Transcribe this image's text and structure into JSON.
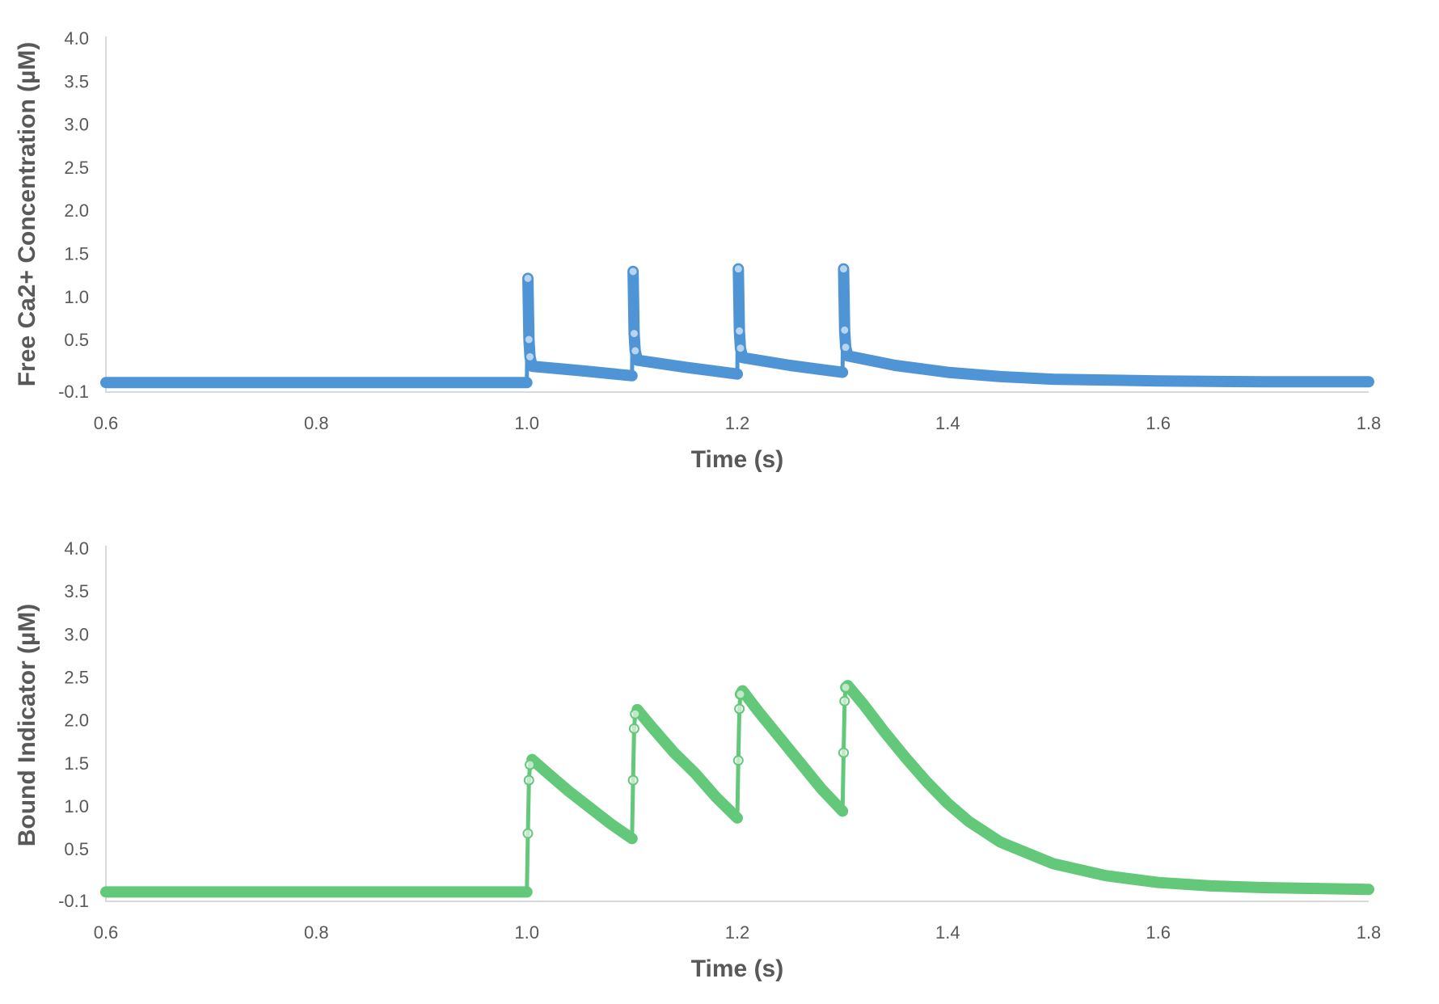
{
  "colors": {
    "free_ca": "#4f95d6",
    "bound_indicator": "#63c879",
    "axis": "#d9d9d9",
    "text": "#595959"
  },
  "chart_data": [
    {
      "type": "line",
      "title": "",
      "xlabel": "Time (s)",
      "ylabel": "Free Ca2+ Concentration (µM)",
      "xlim": [
        0.6,
        1.8
      ],
      "ylim": [
        -0.1,
        4.0
      ],
      "x_ticks": [
        "0.6",
        "0.8",
        "1.0",
        "1.2",
        "1.4",
        "1.6",
        "1.8"
      ],
      "y_ticks": [
        "-0.1",
        "0.5",
        "1.0",
        "1.5",
        "2.0",
        "2.5",
        "3.0",
        "3.5",
        "4.0"
      ],
      "grid": false,
      "legend": null,
      "series": [
        {
          "name": "Free Ca2+",
          "color": "#4f95d6",
          "points": [
            [
              0.6,
              0.0
            ],
            [
              1.0,
              0.0
            ],
            [
              1.001,
              1.21
            ],
            [
              1.002,
              0.5
            ],
            [
              1.003,
              0.3
            ],
            [
              1.005,
              0.19
            ],
            [
              1.05,
              0.14
            ],
            [
              1.1,
              0.08
            ],
            [
              1.101,
              1.29
            ],
            [
              1.102,
              0.57
            ],
            [
              1.103,
              0.37
            ],
            [
              1.105,
              0.26
            ],
            [
              1.15,
              0.18
            ],
            [
              1.2,
              0.1
            ],
            [
              1.201,
              1.32
            ],
            [
              1.202,
              0.6
            ],
            [
              1.203,
              0.4
            ],
            [
              1.205,
              0.29
            ],
            [
              1.25,
              0.2
            ],
            [
              1.3,
              0.12
            ],
            [
              1.301,
              1.32
            ],
            [
              1.302,
              0.61
            ],
            [
              1.303,
              0.41
            ],
            [
              1.305,
              0.31
            ],
            [
              1.35,
              0.2
            ],
            [
              1.4,
              0.12
            ],
            [
              1.45,
              0.07
            ],
            [
              1.5,
              0.04
            ],
            [
              1.6,
              0.02
            ],
            [
              1.7,
              0.01
            ],
            [
              1.8,
              0.01
            ]
          ],
          "markers": [
            [
              1.001,
              1.21
            ],
            [
              1.002,
              0.5
            ],
            [
              1.003,
              0.3
            ],
            [
              1.101,
              1.29
            ],
            [
              1.102,
              0.57
            ],
            [
              1.103,
              0.37
            ],
            [
              1.201,
              1.32
            ],
            [
              1.202,
              0.6
            ],
            [
              1.203,
              0.4
            ],
            [
              1.301,
              1.32
            ],
            [
              1.302,
              0.61
            ],
            [
              1.303,
              0.41
            ]
          ]
        }
      ]
    },
    {
      "type": "line",
      "title": "",
      "xlabel": "Time (s)",
      "ylabel": "Bound Indicator (µM)",
      "xlim": [
        0.6,
        1.8
      ],
      "ylim": [
        -0.1,
        4.0
      ],
      "x_ticks": [
        "0.6",
        "0.8",
        "1.0",
        "1.2",
        "1.4",
        "1.6",
        "1.8"
      ],
      "y_ticks": [
        "-0.1",
        "0.5",
        "1.0",
        "1.5",
        "2.0",
        "2.5",
        "3.0",
        "3.5",
        "4.0"
      ],
      "grid": false,
      "legend": null,
      "series": [
        {
          "name": "Bound Indicator",
          "color": "#63c879",
          "points": [
            [
              0.6,
              0.0
            ],
            [
              1.0,
              0.0
            ],
            [
              1.001,
              0.68
            ],
            [
              1.002,
              1.3
            ],
            [
              1.003,
              1.48
            ],
            [
              1.005,
              1.54
            ],
            [
              1.02,
              1.38
            ],
            [
              1.04,
              1.17
            ],
            [
              1.06,
              0.98
            ],
            [
              1.08,
              0.79
            ],
            [
              1.1,
              0.62
            ],
            [
              1.101,
              1.3
            ],
            [
              1.102,
              1.9
            ],
            [
              1.103,
              2.07
            ],
            [
              1.105,
              2.12
            ],
            [
              1.12,
              1.9
            ],
            [
              1.14,
              1.62
            ],
            [
              1.16,
              1.38
            ],
            [
              1.18,
              1.1
            ],
            [
              1.2,
              0.86
            ],
            [
              1.201,
              1.53
            ],
            [
              1.202,
              2.13
            ],
            [
              1.203,
              2.3
            ],
            [
              1.205,
              2.34
            ],
            [
              1.22,
              2.1
            ],
            [
              1.24,
              1.8
            ],
            [
              1.26,
              1.5
            ],
            [
              1.28,
              1.2
            ],
            [
              1.3,
              0.94
            ],
            [
              1.301,
              1.62
            ],
            [
              1.302,
              2.22
            ],
            [
              1.303,
              2.38
            ],
            [
              1.305,
              2.4
            ],
            [
              1.32,
              2.18
            ],
            [
              1.34,
              1.86
            ],
            [
              1.36,
              1.56
            ],
            [
              1.38,
              1.28
            ],
            [
              1.4,
              1.03
            ],
            [
              1.42,
              0.82
            ],
            [
              1.45,
              0.58
            ],
            [
              1.5,
              0.33
            ],
            [
              1.55,
              0.19
            ],
            [
              1.6,
              0.11
            ],
            [
              1.65,
              0.07
            ],
            [
              1.7,
              0.05
            ],
            [
              1.75,
              0.04
            ],
            [
              1.8,
              0.03
            ]
          ],
          "markers": [
            [
              1.001,
              0.68
            ],
            [
              1.002,
              1.3
            ],
            [
              1.003,
              1.48
            ],
            [
              1.101,
              1.3
            ],
            [
              1.102,
              1.9
            ],
            [
              1.103,
              2.07
            ],
            [
              1.201,
              1.53
            ],
            [
              1.202,
              2.13
            ],
            [
              1.203,
              2.3
            ],
            [
              1.301,
              1.62
            ],
            [
              1.302,
              2.22
            ],
            [
              1.303,
              2.38
            ]
          ]
        }
      ]
    }
  ],
  "charts": {
    "top": {
      "ylabel": "Free Ca2+ Concentration (µM)",
      "xlabel": "Time (s)"
    },
    "bottom": {
      "ylabel": "Bound Indicator (µM)",
      "xlabel": "Time (s)"
    }
  }
}
